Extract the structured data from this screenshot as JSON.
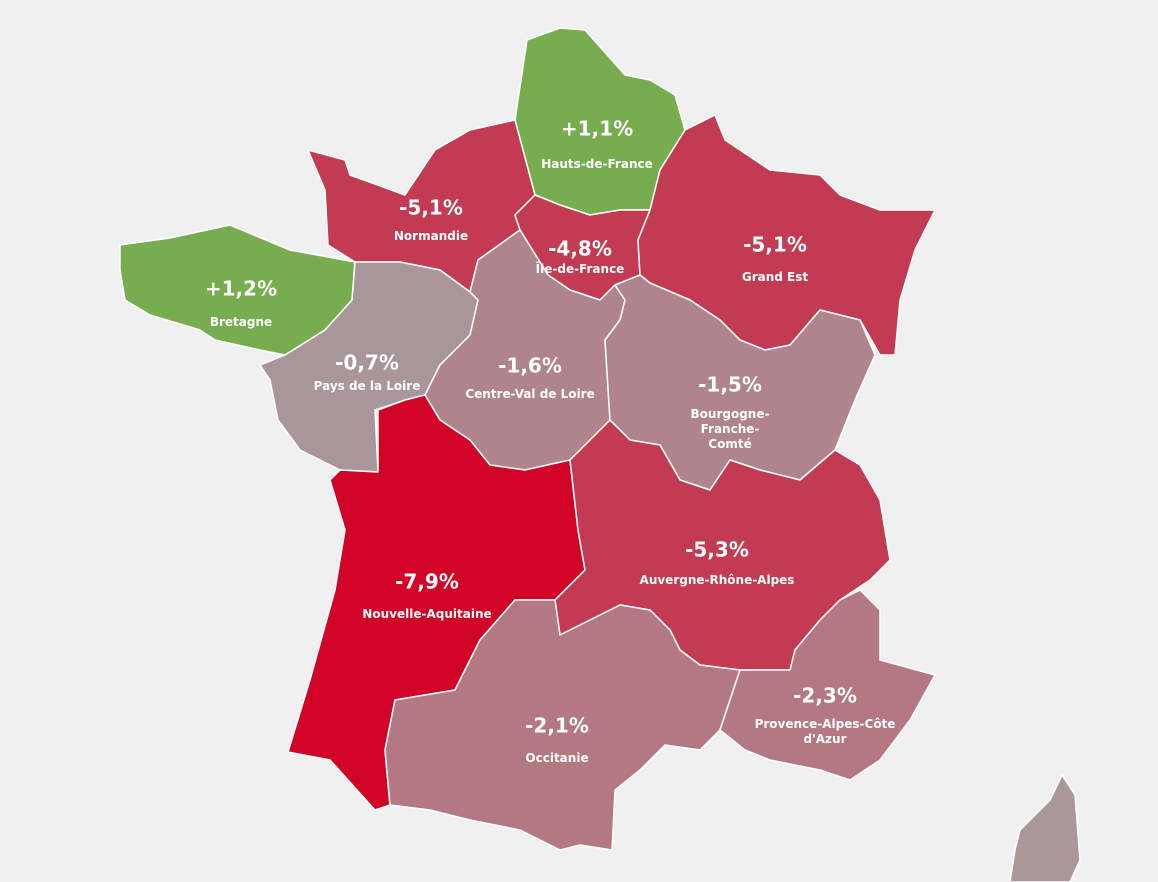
{
  "regions": [
    {
      "name": "Hauts-de-France",
      "value": "+1,1%",
      "color": "#77ac4f"
    },
    {
      "name": "Normandie",
      "value": "-5,1%",
      "color": "#c23b52"
    },
    {
      "name": "Île-de-France",
      "value": "-4,8%",
      "color": "#c23b52"
    },
    {
      "name": "Grand Est",
      "value": "-5,1%",
      "color": "#c23b52"
    },
    {
      "name": "Bretagne",
      "value": "+1,2%",
      "color": "#77ac4f"
    },
    {
      "name": "Pays de la Loire",
      "value": "-0,7%",
      "color": "#a8969a"
    },
    {
      "name": "Centre-Val de Loire",
      "value": "-1,6%",
      "color": "#b0848c"
    },
    {
      "name": "Bourgogne-Franche-Comté",
      "value": "-1,5%",
      "color": "#b0848c"
    },
    {
      "name": "Nouvelle-Aquitaine",
      "value": "-7,9%",
      "color": "#d10428"
    },
    {
      "name": "Auvergne-Rhône-Alpes",
      "value": "-5,3%",
      "color": "#c23b52"
    },
    {
      "name": "Occitanie",
      "value": "-2,1%",
      "color": "#b47883"
    },
    {
      "name": "Provence-Alpes-Côte d'Azur",
      "value": "-2,3%",
      "color": "#b47883"
    }
  ]
}
